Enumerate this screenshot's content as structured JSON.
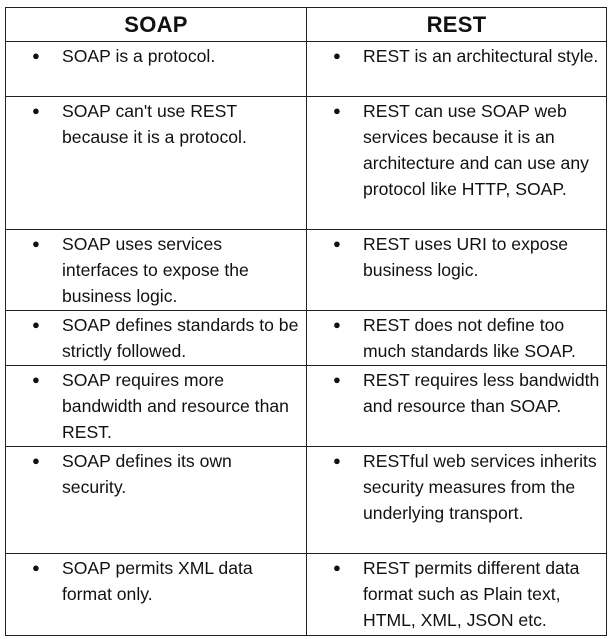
{
  "headers": {
    "soap": "SOAP",
    "rest": "REST"
  },
  "bullet_glyph": "●",
  "rows": [
    {
      "soap": "SOAP is a protocol.",
      "rest": "REST is an architectural style."
    },
    {
      "soap": "SOAP can't use REST because it is a protocol.",
      "rest": "REST can use SOAP web services because it is an architecture and can use any protocol like HTTP, SOAP."
    },
    {
      "soap": "SOAP uses services interfaces to expose the business logic.",
      "rest": "REST uses URI to expose business logic."
    },
    {
      "soap": "SOAP defines standards to be strictly followed.",
      "rest": "REST does not define too much standards like SOAP."
    },
    {
      "soap": "SOAP requires more bandwidth and resource than REST.",
      "rest": "REST requires less bandwidth and resource than SOAP."
    },
    {
      "soap": "SOAP defines its own security.",
      "rest": "RESTful web services inherits security measures from the underlying transport."
    },
    {
      "soap": "SOAP permits XML data format only.",
      "rest": "REST permits different data format such as Plain text, HTML, XML, JSON etc."
    }
  ]
}
